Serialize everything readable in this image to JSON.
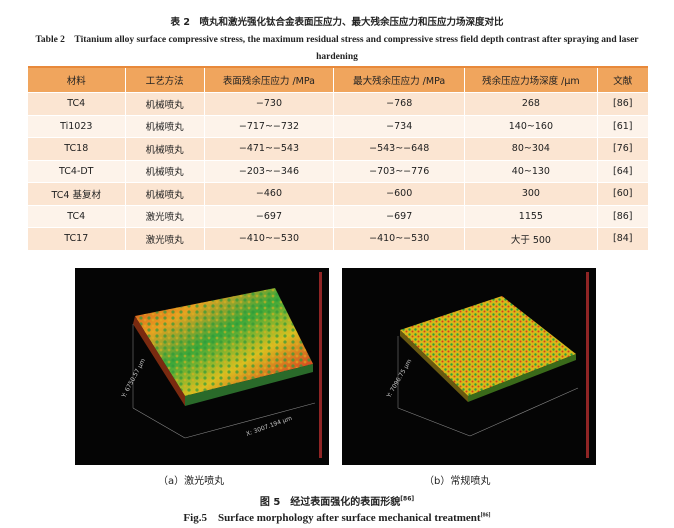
{
  "table": {
    "title_cn": "表 2　喷丸和激光强化钛合金表面压应力、最大残余压应力和压应力场深度对比",
    "title_en": "Table 2　Titanium alloy surface compressive stress, the maximum residual stress and compressive stress field depth contrast after spraying and laser hardening",
    "headers": [
      "材料",
      "工艺方法",
      "表面残余压应力 /MPa",
      "最大残余压应力 /MPa",
      "残余压应力场深度 /μm",
      "文献"
    ],
    "rows": [
      [
        "TC4",
        "机械喷丸",
        "−730",
        "−768",
        "268",
        "[86]"
      ],
      [
        "Ti1023",
        "机械喷丸",
        "−717~−732",
        "−734",
        "140~160",
        "[61]"
      ],
      [
        "TC18",
        "机械喷丸",
        "−471~−543",
        "−543~−648",
        "80~304",
        "[76]"
      ],
      [
        "TC4-DT",
        "机械喷丸",
        "−203~−346",
        "−703~−776",
        "40~130",
        "[64]"
      ],
      [
        "TC4 基复材",
        "机械喷丸",
        "−460",
        "−600",
        "300",
        "[60]"
      ],
      [
        "TC4",
        "激光喷丸",
        "−697",
        "−697",
        "1155",
        "[86]"
      ],
      [
        "TC17",
        "激光喷丸",
        "−410~−530",
        "−410~−530",
        "大于 500",
        "[84]"
      ]
    ]
  },
  "figure": {
    "panel_a": {
      "caption": "（a）激光喷丸",
      "y_axis": "Y: 6750.57 μm",
      "x_axis": "X: 3007.194 μm"
    },
    "panel_b": {
      "caption": "（b）常规喷丸",
      "y_axis": "Y: 7096.75 μm"
    },
    "title_cn": "图 5　经过表面强化的表面形貌",
    "title_cn_ref": "[86]",
    "title_en": "Fig.5　Surface morphology after surface mechanical treatment",
    "title_en_ref": "[86]"
  }
}
